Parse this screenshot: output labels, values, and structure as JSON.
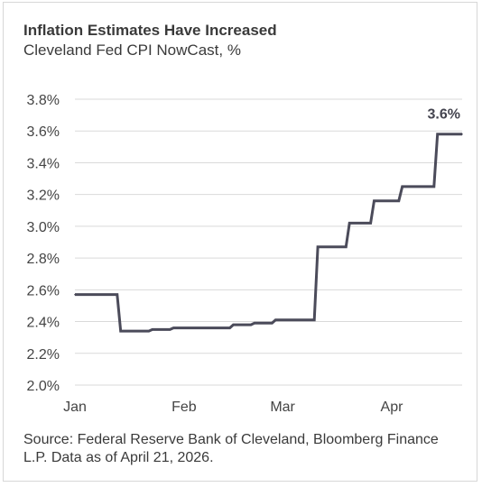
{
  "chart_data": {
    "type": "line",
    "title": "Inflation Estimates Have Increased",
    "subtitle": "Cleveland Fed CPI NowCast, %",
    "source": "Source: Federal Reserve Bank of Cleveland, Bloomberg Finance L.P. Data as of April 21, 2026.",
    "x_tick_labels": [
      "Jan",
      "Feb",
      "Mar",
      "Apr"
    ],
    "y_tick_labels": [
      "2.0%",
      "2.2%",
      "2.4%",
      "2.6%",
      "2.8%",
      "3.0%",
      "3.2%",
      "3.4%",
      "3.6%",
      "3.8%"
    ],
    "ylim": [
      2.0,
      3.8
    ],
    "grid": "horizontal",
    "line_color": "#4b4b5a",
    "grid_color": "#d9d9d9",
    "end_label": "3.6%",
    "series": [
      {
        "x": [
          "2026-01-01",
          "2026-01-13",
          "2026-01-14",
          "2026-01-22",
          "2026-01-23",
          "2026-01-28",
          "2026-01-29",
          "2026-02-14",
          "2026-02-15",
          "2026-02-20",
          "2026-02-21",
          "2026-02-26",
          "2026-02-27",
          "2026-03-10",
          "2026-03-11",
          "2026-03-19",
          "2026-03-20",
          "2026-03-26",
          "2026-03-27",
          "2026-04-03",
          "2026-04-04",
          "2026-04-13",
          "2026-04-14",
          "2026-04-21"
        ],
        "values": [
          2.57,
          2.57,
          2.34,
          2.34,
          2.35,
          2.35,
          2.36,
          2.36,
          2.38,
          2.38,
          2.39,
          2.39,
          2.41,
          2.41,
          2.87,
          2.87,
          3.02,
          3.02,
          3.16,
          3.16,
          3.25,
          3.25,
          3.58,
          3.58
        ]
      }
    ]
  }
}
